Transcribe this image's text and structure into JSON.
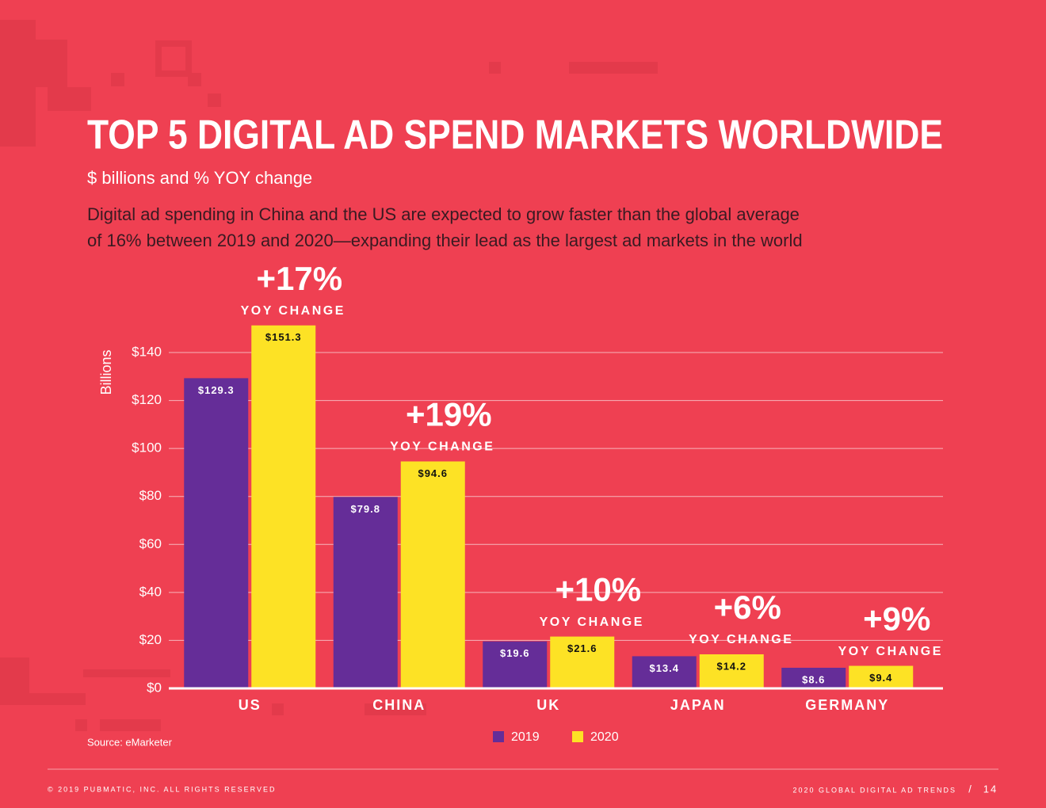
{
  "chart_data": {
    "type": "bar",
    "title": "TOP 5 DIGITAL AD SPEND MARKETS WORLDWIDE",
    "subtitle": "$ billions and % YOY change",
    "description": [
      "Digital ad spending in China and the US are expected to grow faster than the global average",
      "of 16% between 2019 and 2020—expanding their lead as the largest ad markets in the world"
    ],
    "y_label": "Billions",
    "categories": [
      "US",
      "CHINA",
      "UK",
      "JAPAN",
      "GERMANY"
    ],
    "series": [
      {
        "name": "2019",
        "color": "#652d98",
        "values": [
          129.3,
          79.8,
          19.6,
          13.4,
          8.6
        ],
        "value_labels": [
          "$129.3",
          "$79.8",
          "$19.6",
          "$13.4",
          "$8.6"
        ]
      },
      {
        "name": "2020",
        "color": "#fde225",
        "values": [
          151.3,
          94.6,
          21.6,
          14.2,
          9.4
        ],
        "value_labels": [
          "$151.3",
          "$94.6",
          "$21.6",
          "$14.2",
          "$9.4"
        ]
      }
    ],
    "annotations": [
      {
        "text": "+17%",
        "label": "YOY CHANGE"
      },
      {
        "text": "+19%",
        "label": "YOY CHANGE"
      },
      {
        "text": "+10%",
        "label": "YOY CHANGE"
      },
      {
        "text": "+6%",
        "label": "YOY CHANGE"
      },
      {
        "text": "+9%",
        "label": "YOY CHANGE"
      }
    ],
    "ylim": [
      0,
      140
    ],
    "yticks": [
      {
        "value": 0,
        "label": "$0"
      },
      {
        "value": 20,
        "label": "$20"
      },
      {
        "value": 40,
        "label": "$40"
      },
      {
        "value": 60,
        "label": "$60"
      },
      {
        "value": 80,
        "label": "$80"
      },
      {
        "value": 100,
        "label": "$100"
      },
      {
        "value": 120,
        "label": "$120"
      },
      {
        "value": 140,
        "label": "$140"
      }
    ],
    "grid": true,
    "legend": "bottom",
    "source": "Source: eMarketer"
  },
  "footer": {
    "copyright": "© 2019 PUBMATIC, INC. ALL RIGHTS RESERVED",
    "report": "2020 GLOBAL DIGITAL AD TRENDS",
    "separator": "/",
    "page": "14"
  }
}
